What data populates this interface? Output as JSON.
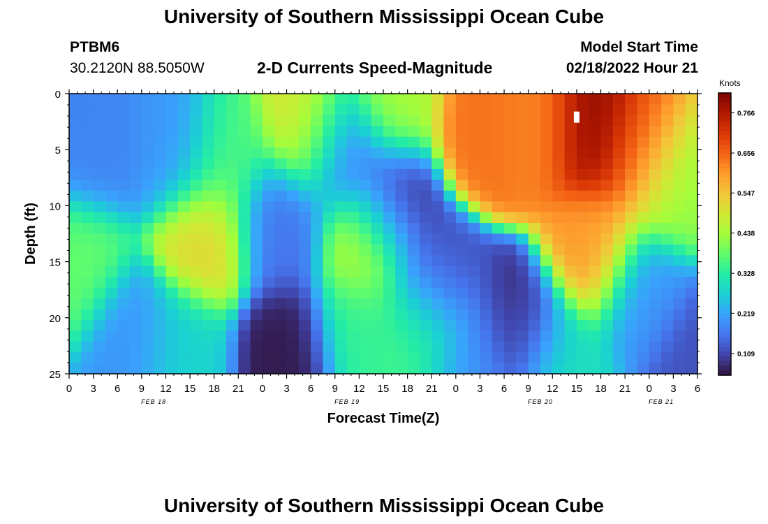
{
  "title": "University of Southern Mississippi Ocean Cube",
  "station": "PTBM6",
  "coords": "30.2120N  88.5050W",
  "subtitle": "2-D Currents Speed-Magnitude",
  "model_start_label": "Model Start Time",
  "model_start_value": "02/18/2022 Hour 21",
  "footer_title": "University of Southern Mississippi Ocean Cube",
  "chart_data": {
    "type": "heatmap",
    "xlabel": "Forecast Time(Z)",
    "ylabel": "Depth (ft)",
    "x_ticks": [
      "0",
      "3",
      "6",
      "9",
      "12",
      "15",
      "18",
      "21",
      "0",
      "3",
      "6",
      "9",
      "12",
      "15",
      "18",
      "21",
      "0",
      "3",
      "6",
      "9",
      "12",
      "15",
      "18",
      "21",
      "0",
      "3",
      "6"
    ],
    "date_labels": [
      {
        "label": "FEB 18",
        "at_tick": 3.5
      },
      {
        "label": "FEB 19",
        "at_tick": 11.5
      },
      {
        "label": "FEB 20",
        "at_tick": 19.5
      },
      {
        "label": "FEB 21",
        "at_tick": 24.5
      }
    ],
    "xlim": [
      0,
      78
    ],
    "ylim": [
      0,
      25
    ],
    "y_ticks": [
      0,
      5,
      10,
      15,
      20,
      25
    ],
    "y_inverted": true,
    "colorbar": {
      "label": "Knots",
      "ticks": [
        "0.766",
        "0.656",
        "0.547",
        "0.438",
        "0.328",
        "0.219",
        "0.109"
      ],
      "range": [
        0.05,
        0.82
      ],
      "colors": [
        "#30123b",
        "#4145ab",
        "#4675ed",
        "#39a2fc",
        "#1bcfd4",
        "#24eca6",
        "#61fc6c",
        "#a4fc3b",
        "#d1e834",
        "#f3c63a",
        "#fe9b2d",
        "#f36315",
        "#d93806",
        "#b11901",
        "#7a0402"
      ]
    },
    "grid_x_cells": 52,
    "grid_y_cells": 26,
    "field_centers": [
      {
        "t": 3,
        "d": 5,
        "value": 0.18
      },
      {
        "t": 13,
        "d": 5,
        "value": 0.2
      },
      {
        "t": 8,
        "d": 22,
        "value": 0.2
      },
      {
        "t": 1,
        "d": 15,
        "value": 0.38
      },
      {
        "t": 17,
        "d": 13,
        "value": 0.52
      },
      {
        "t": 19,
        "d": 6,
        "value": 0.36
      },
      {
        "t": 27,
        "d": 23,
        "value": 0.06
      },
      {
        "t": 26,
        "d": 12,
        "value": 0.16
      },
      {
        "t": 30,
        "d": 3,
        "value": 0.5
      },
      {
        "t": 34,
        "d": 5,
        "value": 0.15
      },
      {
        "t": 40,
        "d": 10,
        "value": 0.08
      },
      {
        "t": 37,
        "d": 13,
        "value": 0.48
      },
      {
        "t": 36,
        "d": 21,
        "value": 0.34
      },
      {
        "t": 40,
        "d": 0.5,
        "value": 0.44
      },
      {
        "t": 46,
        "d": 17,
        "value": 0.12
      },
      {
        "t": 44,
        "d": 21,
        "value": 0.36
      },
      {
        "t": 52,
        "d": 3,
        "value": 0.64
      },
      {
        "t": 58,
        "d": 3,
        "value": 0.62
      },
      {
        "t": 56,
        "d": 21,
        "value": 0.08
      },
      {
        "t": 65,
        "d": 3,
        "value": 0.8
      },
      {
        "t": 65,
        "d": 14,
        "value": 0.6
      },
      {
        "t": 71,
        "d": 5,
        "value": 0.66
      },
      {
        "t": 75,
        "d": 8,
        "value": 0.42
      },
      {
        "t": 71,
        "d": 18,
        "value": 0.2
      },
      {
        "t": 78,
        "d": 24,
        "value": 0.12
      },
      {
        "t": 61,
        "d": 24,
        "value": 0.3
      },
      {
        "t": 50,
        "d": 24,
        "value": 0.2
      },
      {
        "t": 14,
        "d": 23,
        "value": 0.28
      }
    ]
  }
}
